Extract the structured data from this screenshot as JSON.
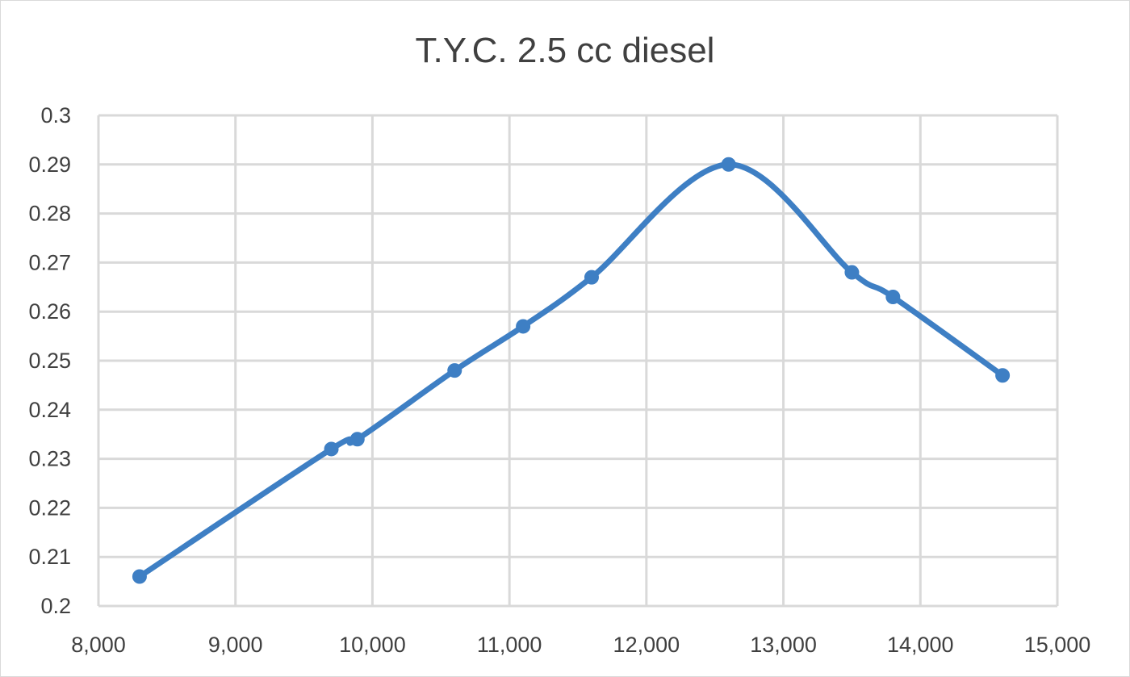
{
  "chart_data": {
    "type": "line",
    "title": "T.Y.C. 2.5 cc diesel",
    "xlabel": "",
    "ylabel": "",
    "xlim": [
      8000,
      15000
    ],
    "ylim": [
      0.2,
      0.3
    ],
    "xticks": [
      8000,
      9000,
      10000,
      11000,
      12000,
      13000,
      14000,
      15000
    ],
    "xtick_labels": [
      "8,000",
      "9,000",
      "10,000",
      "11,000",
      "12,000",
      "13,000",
      "14,000",
      "15,000"
    ],
    "yticks": [
      0.2,
      0.21,
      0.22,
      0.23,
      0.24,
      0.25,
      0.26,
      0.27,
      0.28,
      0.29,
      0.3
    ],
    "ytick_labels": [
      "0.2",
      "0.21",
      "0.22",
      "0.23",
      "0.24",
      "0.25",
      "0.26",
      "0.27",
      "0.28",
      "0.29",
      "0.3"
    ],
    "grid": true,
    "smooth": true,
    "series_color": "#3e7fc4",
    "grid_color": "#d9d9d9",
    "series": [
      {
        "x": [
          8300,
          9700,
          9890,
          10600,
          11100,
          11600,
          12600,
          13500,
          13800,
          14600
        ],
        "y": [
          0.206,
          0.232,
          0.234,
          0.248,
          0.257,
          0.267,
          0.29,
          0.268,
          0.263,
          0.247
        ]
      }
    ]
  }
}
